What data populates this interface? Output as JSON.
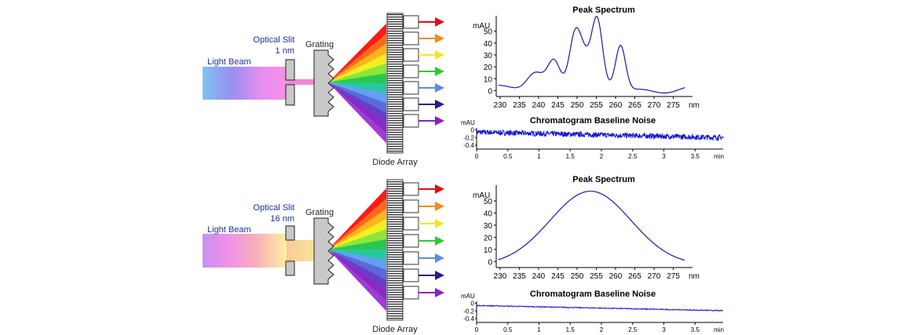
{
  "panels": [
    {
      "slit_label": "Optical Slit",
      "slit_width": "1 nm",
      "grating_label": "Grating",
      "beam_label": "Light Beam",
      "diode_label": "Diode Array",
      "spectrum": {
        "title": "Peak Spectrum",
        "yunit": "mAU",
        "xunit": "nm",
        "yticks": [
          "0",
          "10",
          "20",
          "30",
          "40",
          "50"
        ],
        "xticks": [
          "230",
          "235",
          "240",
          "245",
          "250",
          "255",
          "260",
          "265",
          "270",
          "275"
        ]
      },
      "noise": {
        "title": "Chromatogram Baseline Noise",
        "yunit": "mAU",
        "xunit": "min",
        "yticks": [
          "0",
          "-0.2",
          "-0.4"
        ],
        "xticks": [
          "0",
          "0.5",
          "1",
          "1.5",
          "2",
          "2.5",
          "3",
          "3.5"
        ]
      }
    },
    {
      "slit_label": "Optical Slit",
      "slit_width": "16 nm",
      "grating_label": "Grating",
      "beam_label": "Light Beam",
      "diode_label": "Diode Array",
      "spectrum": {
        "title": "Peak Spectrum",
        "yunit": "mAU",
        "xunit": "nm",
        "yticks": [
          "0",
          "10",
          "20",
          "30",
          "40",
          "50"
        ],
        "xticks": [
          "230",
          "235",
          "240",
          "245",
          "250",
          "255",
          "260",
          "265",
          "270",
          "275"
        ]
      },
      "noise": {
        "title": "Chromatogram Baseline Noise",
        "yunit": "mAU",
        "xunit": "min",
        "yticks": [
          "0",
          "-0.2",
          "-0.4"
        ],
        "xticks": [
          "0",
          "0.5",
          "1",
          "1.5",
          "2",
          "2.5",
          "3",
          "3.5"
        ]
      }
    }
  ],
  "colors": {
    "curve": "#1a1aa0",
    "noise": "#1010d0",
    "arrows": [
      "#e01010",
      "#f08c1e",
      "#f0e628",
      "#32c832",
      "#5a8ce6",
      "#2a1a90",
      "#8c1ec8"
    ]
  }
}
